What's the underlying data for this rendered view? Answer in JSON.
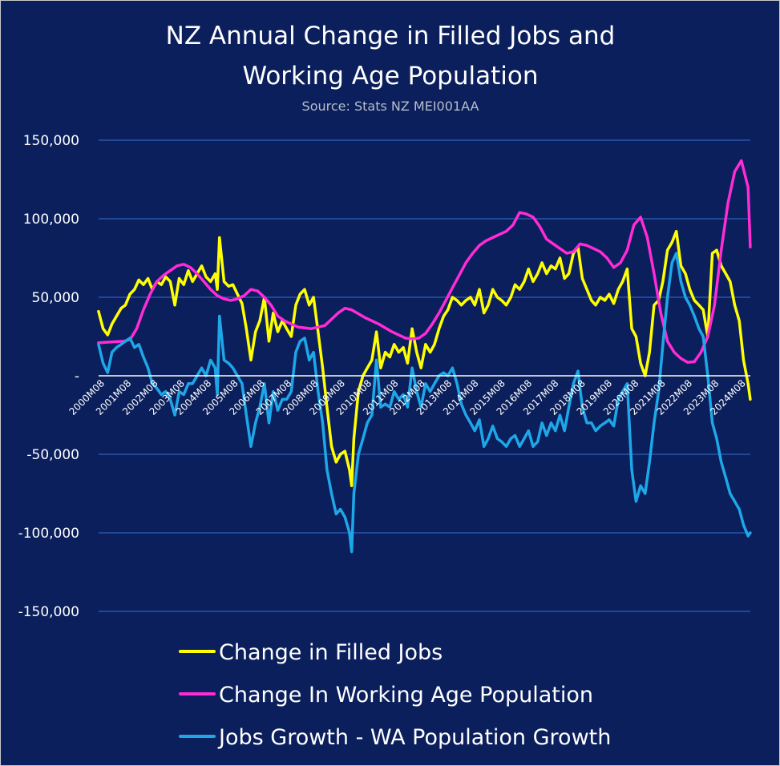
{
  "colors": {
    "background": "#0b1f5c",
    "grid": "#2f62b8",
    "jobs": "#ffff00",
    "population": "#ff2bd6",
    "gap": "#1ea7e8"
  },
  "chart_data": {
    "type": "line",
    "title_line1": "NZ Annual Change in Filled Jobs and",
    "title_line2": "Working Age Population",
    "subtitle": "Source: Stats NZ MEI001AA",
    "xlabel": "",
    "ylabel": "",
    "ylim": [
      -150000,
      150000
    ],
    "y_ticks": [
      150000,
      100000,
      50000,
      0,
      -50000,
      -100000,
      -150000
    ],
    "y_tick_labels": [
      "150,000",
      "100,000",
      "50,000",
      "-",
      "-50,000",
      "-100,000",
      "-150,000"
    ],
    "x_tick_labels": [
      "2000M08",
      "2001M08",
      "2002M08",
      "2003M08",
      "2004M08",
      "2005M08",
      "2006M08",
      "2007M08",
      "2008M08",
      "2009M08",
      "2010M08",
      "2011M08",
      "2012M08",
      "2013M08",
      "2014M08",
      "2015M08",
      "2016M08",
      "2017M08",
      "2018M08",
      "2019M08",
      "2020M08",
      "2021M08",
      "2022M08",
      "2023M08",
      "2024M08"
    ],
    "x_start": 2000.583,
    "x_end": 2024.833,
    "grid": true,
    "legend_position": "bottom",
    "series": [
      {
        "name": "Change in Filled Jobs",
        "color": "#ffff00",
        "x": [
          2000.58,
          2000.75,
          2000.92,
          2001.08,
          2001.25,
          2001.42,
          2001.58,
          2001.75,
          2001.92,
          2002.08,
          2002.25,
          2002.42,
          2002.58,
          2002.75,
          2002.92,
          2003.08,
          2003.25,
          2003.42,
          2003.58,
          2003.75,
          2003.92,
          2004.08,
          2004.25,
          2004.42,
          2004.58,
          2004.75,
          2004.92,
          2005.0,
          2005.08,
          2005.25,
          2005.42,
          2005.58,
          2005.75,
          2005.92,
          2006.08,
          2006.25,
          2006.42,
          2006.58,
          2006.75,
          2006.92,
          2007.08,
          2007.25,
          2007.42,
          2007.58,
          2007.75,
          2007.92,
          2008.08,
          2008.25,
          2008.42,
          2008.58,
          2008.75,
          2008.92,
          2009.08,
          2009.25,
          2009.42,
          2009.58,
          2009.75,
          2009.92,
          2010.0,
          2010.08,
          2010.25,
          2010.42,
          2010.58,
          2010.75,
          2010.92,
          2011.08,
          2011.25,
          2011.42,
          2011.58,
          2011.75,
          2011.92,
          2012.08,
          2012.25,
          2012.42,
          2012.58,
          2012.75,
          2012.92,
          2013.08,
          2013.25,
          2013.42,
          2013.58,
          2013.75,
          2013.92,
          2014.08,
          2014.25,
          2014.42,
          2014.58,
          2014.75,
          2014.92,
          2015.08,
          2015.25,
          2015.42,
          2015.58,
          2015.75,
          2015.92,
          2016.08,
          2016.25,
          2016.42,
          2016.58,
          2016.75,
          2016.92,
          2017.08,
          2017.25,
          2017.42,
          2017.58,
          2017.75,
          2017.92,
          2018.08,
          2018.25,
          2018.42,
          2018.58,
          2018.75,
          2018.92,
          2019.08,
          2019.25,
          2019.42,
          2019.58,
          2019.75,
          2019.92,
          2020.08,
          2020.25,
          2020.42,
          2020.58,
          2020.75,
          2020.92,
          2021.08,
          2021.25,
          2021.42,
          2021.58,
          2021.75,
          2021.92,
          2022.08,
          2022.25,
          2022.42,
          2022.58,
          2022.75,
          2022.92,
          2023.08,
          2023.25,
          2023.42,
          2023.58,
          2023.75,
          2023.92,
          2024.08,
          2024.25,
          2024.42,
          2024.58,
          2024.75,
          2024.83
        ],
        "values": [
          41000,
          30000,
          26000,
          33000,
          38000,
          43000,
          45000,
          52000,
          55000,
          61000,
          58000,
          62000,
          55000,
          60000,
          58000,
          63000,
          60000,
          45000,
          62000,
          58000,
          67000,
          60000,
          65000,
          70000,
          63000,
          60000,
          65000,
          55000,
          88000,
          60000,
          57000,
          58000,
          52000,
          46000,
          30000,
          10000,
          28000,
          35000,
          50000,
          22000,
          40000,
          28000,
          35000,
          30000,
          25000,
          45000,
          52000,
          55000,
          45000,
          50000,
          28000,
          5000,
          -20000,
          -45000,
          -55000,
          -50000,
          -48000,
          -60000,
          -70000,
          -40000,
          -10000,
          0,
          5000,
          10000,
          28000,
          5000,
          15000,
          12000,
          20000,
          15000,
          18000,
          8000,
          30000,
          15000,
          5000,
          20000,
          15000,
          20000,
          30000,
          38000,
          42000,
          50000,
          48000,
          45000,
          48000,
          50000,
          45000,
          55000,
          40000,
          45000,
          55000,
          50000,
          48000,
          45000,
          50000,
          58000,
          55000,
          60000,
          68000,
          60000,
          65000,
          72000,
          65000,
          70000,
          68000,
          75000,
          62000,
          65000,
          78000,
          82000,
          62000,
          55000,
          48000,
          45000,
          50000,
          48000,
          52000,
          46000,
          55000,
          60000,
          68000,
          30000,
          25000,
          8000,
          0,
          15000,
          45000,
          48000,
          60000,
          80000,
          85000,
          92000,
          70000,
          65000,
          55000,
          48000,
          45000,
          42000,
          25000,
          78000,
          80000,
          70000,
          65000,
          60000,
          45000,
          35000,
          10000,
          -5000,
          -15000
        ]
      },
      {
        "name": "Change In Working Age Population",
        "color": "#ff2bd6",
        "x": [
          2000.58,
          2001.0,
          2001.5,
          2001.75,
          2002.0,
          2002.25,
          2002.5,
          2002.75,
          2003.0,
          2003.25,
          2003.5,
          2003.75,
          2004.0,
          2004.25,
          2004.5,
          2004.75,
          2005.0,
          2005.25,
          2005.5,
          2005.75,
          2006.0,
          2006.25,
          2006.5,
          2006.75,
          2007.0,
          2007.25,
          2007.5,
          2007.75,
          2008.0,
          2008.5,
          2009.0,
          2009.25,
          2009.5,
          2009.75,
          2010.0,
          2010.5,
          2011.0,
          2011.5,
          2012.0,
          2012.25,
          2012.5,
          2012.75,
          2013.0,
          2013.25,
          2013.5,
          2013.75,
          2014.0,
          2014.25,
          2014.5,
          2014.75,
          2015.0,
          2015.25,
          2015.5,
          2015.75,
          2016.0,
          2016.25,
          2016.5,
          2016.75,
          2017.0,
          2017.25,
          2017.5,
          2017.75,
          2018.0,
          2018.25,
          2018.5,
          2018.75,
          2019.0,
          2019.25,
          2019.5,
          2019.75,
          2020.0,
          2020.25,
          2020.5,
          2020.75,
          2021.0,
          2021.25,
          2021.5,
          2021.75,
          2022.0,
          2022.25,
          2022.5,
          2022.75,
          2023.0,
          2023.25,
          2023.5,
          2023.75,
          2024.0,
          2024.25,
          2024.5,
          2024.75,
          2024.83
        ],
        "values": [
          21000,
          21500,
          22000,
          23000,
          30000,
          42000,
          52000,
          60000,
          64000,
          67000,
          70000,
          71000,
          69000,
          65000,
          60000,
          55000,
          51000,
          49000,
          48000,
          49000,
          51000,
          55000,
          54000,
          50000,
          45000,
          38000,
          35000,
          33000,
          31000,
          30000,
          32000,
          36000,
          40000,
          43000,
          42000,
          37000,
          33000,
          28000,
          24000,
          23500,
          24000,
          27000,
          33000,
          40000,
          48000,
          56000,
          64000,
          72000,
          78000,
          83000,
          86000,
          88000,
          90000,
          92000,
          96000,
          104000,
          103000,
          101000,
          95000,
          87000,
          84000,
          81000,
          78000,
          79000,
          84000,
          83000,
          81000,
          79000,
          75000,
          69000,
          72000,
          80000,
          96000,
          101000,
          88000,
          65000,
          40000,
          22000,
          15000,
          11000,
          8500,
          9000,
          15000,
          25000,
          45000,
          80000,
          110000,
          130000,
          137000,
          120000,
          82000
        ]
      },
      {
        "name": "Jobs Growth - WA Population Growth",
        "color": "#1ea7e8",
        "x": [
          2000.58,
          2000.75,
          2000.92,
          2001.08,
          2001.25,
          2001.42,
          2001.58,
          2001.75,
          2001.92,
          2002.08,
          2002.25,
          2002.42,
          2002.58,
          2002.75,
          2002.92,
          2003.08,
          2003.25,
          2003.42,
          2003.58,
          2003.75,
          2003.92,
          2004.08,
          2004.25,
          2004.42,
          2004.58,
          2004.75,
          2004.92,
          2005.0,
          2005.08,
          2005.25,
          2005.42,
          2005.58,
          2005.75,
          2005.92,
          2006.08,
          2006.25,
          2006.42,
          2006.58,
          2006.75,
          2006.92,
          2007.08,
          2007.25,
          2007.42,
          2007.58,
          2007.75,
          2007.92,
          2008.08,
          2008.25,
          2008.42,
          2008.58,
          2008.75,
          2008.92,
          2009.08,
          2009.25,
          2009.42,
          2009.58,
          2009.75,
          2009.92,
          2010.0,
          2010.08,
          2010.25,
          2010.42,
          2010.58,
          2010.75,
          2010.92,
          2011.08,
          2011.25,
          2011.42,
          2011.58,
          2011.75,
          2011.92,
          2012.08,
          2012.25,
          2012.42,
          2012.58,
          2012.75,
          2012.92,
          2013.08,
          2013.25,
          2013.42,
          2013.58,
          2013.75,
          2013.92,
          2014.08,
          2014.25,
          2014.42,
          2014.58,
          2014.75,
          2014.92,
          2015.08,
          2015.25,
          2015.42,
          2015.58,
          2015.75,
          2015.92,
          2016.08,
          2016.25,
          2016.42,
          2016.58,
          2016.75,
          2016.92,
          2017.08,
          2017.25,
          2017.42,
          2017.58,
          2017.75,
          2017.92,
          2018.08,
          2018.25,
          2018.42,
          2018.58,
          2018.75,
          2018.92,
          2019.08,
          2019.25,
          2019.42,
          2019.58,
          2019.75,
          2019.92,
          2020.08,
          2020.25,
          2020.42,
          2020.58,
          2020.75,
          2020.92,
          2021.08,
          2021.25,
          2021.42,
          2021.58,
          2021.75,
          2021.92,
          2022.08,
          2022.25,
          2022.42,
          2022.58,
          2022.75,
          2022.92,
          2023.08,
          2023.25,
          2023.42,
          2023.58,
          2023.75,
          2023.92,
          2024.08,
          2024.25,
          2024.42,
          2024.58,
          2024.75,
          2024.83
        ],
        "values": [
          20000,
          8000,
          2000,
          15000,
          18000,
          20000,
          22000,
          24000,
          18000,
          20000,
          12000,
          5000,
          -5000,
          -8000,
          -12000,
          -10000,
          -15000,
          -25000,
          -10000,
          -12000,
          -5000,
          -5000,
          0,
          5000,
          0,
          10000,
          5000,
          -12000,
          38000,
          10000,
          8000,
          5000,
          0,
          -5000,
          -25000,
          -45000,
          -30000,
          -20000,
          -5000,
          -30000,
          -10000,
          -22000,
          -15000,
          -15000,
          -10000,
          15000,
          22000,
          24000,
          10000,
          15000,
          -10000,
          -30000,
          -60000,
          -75000,
          -88000,
          -85000,
          -90000,
          -100000,
          -112000,
          -75000,
          -50000,
          -40000,
          -30000,
          -25000,
          10000,
          -20000,
          -18000,
          -20000,
          -10000,
          -15000,
          -12000,
          -20000,
          5000,
          -10000,
          -20000,
          -5000,
          -10000,
          -5000,
          0,
          2000,
          0,
          5000,
          -5000,
          -18000,
          -25000,
          -30000,
          -35000,
          -28000,
          -45000,
          -40000,
          -32000,
          -40000,
          -42000,
          -45000,
          -40000,
          -38000,
          -45000,
          -40000,
          -35000,
          -45000,
          -42000,
          -30000,
          -38000,
          -30000,
          -35000,
          -25000,
          -35000,
          -20000,
          -5000,
          3000,
          -20000,
          -30000,
          -30000,
          -35000,
          -32000,
          -30000,
          -28000,
          -32000,
          -15000,
          -10000,
          -5000,
          -60000,
          -80000,
          -70000,
          -75000,
          -55000,
          -30000,
          -10000,
          20000,
          50000,
          72000,
          78000,
          60000,
          50000,
          45000,
          38000,
          30000,
          25000,
          0,
          -30000,
          -40000,
          -55000,
          -65000,
          -75000,
          -80000,
          -85000,
          -95000,
          -102000,
          -100000
        ]
      }
    ]
  }
}
